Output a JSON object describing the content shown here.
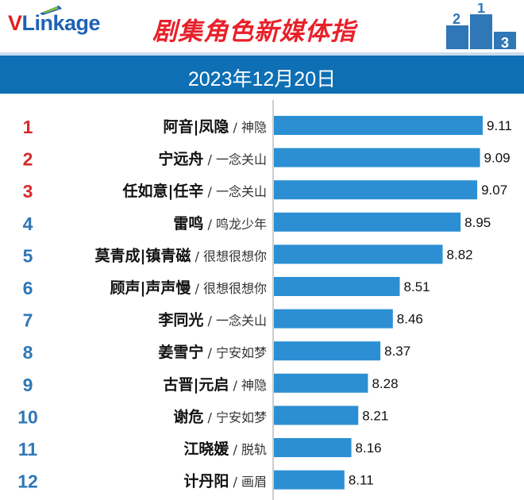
{
  "header": {
    "logo_v": "V",
    "logo_link": "Link",
    "logo_age": "age",
    "title": "剧集角色新媒体指",
    "podium_labels": [
      "2",
      "1",
      "3"
    ],
    "date": "2023年12月20日"
  },
  "colors": {
    "bar": "#2c8fd3",
    "rank_top": "#d42b2b",
    "rank_rest": "#2f77b6",
    "band": "#0e6fb4",
    "title": "#e8202a"
  },
  "chart_data": {
    "type": "bar",
    "orientation": "horizontal",
    "ranks": [
      "1",
      "2",
      "3",
      "4",
      "5",
      "6",
      "7",
      "8",
      "9",
      "10",
      "11",
      "12"
    ],
    "categories": [
      "阿音|凤隐",
      "宁远舟",
      "任如意|任辛",
      "雷鸣",
      "莫青成|镇青磁",
      "顾声|声声慢",
      "李同光",
      "姜雪宁",
      "古晋|元启",
      "谢危",
      "江晓媛",
      "计丹阳"
    ],
    "dramas": [
      "神隐",
      "一念关山",
      "一念关山",
      "鸣龙少年",
      "很想很想你",
      "很想很想你",
      "一念关山",
      "宁安如梦",
      "神隐",
      "宁安如梦",
      "脱轨",
      "画眉"
    ],
    "values": [
      9.11,
      9.09,
      9.07,
      8.95,
      8.82,
      8.51,
      8.46,
      8.37,
      8.28,
      8.21,
      8.16,
      8.11
    ],
    "xlim": [
      7.6,
      9.15
    ],
    "value_labels": [
      "9.11",
      "9.09",
      "9.07",
      "8.95",
      "8.82",
      "8.51",
      "8.46",
      "8.37",
      "8.28",
      "8.21",
      "8.16",
      "8.11"
    ]
  }
}
